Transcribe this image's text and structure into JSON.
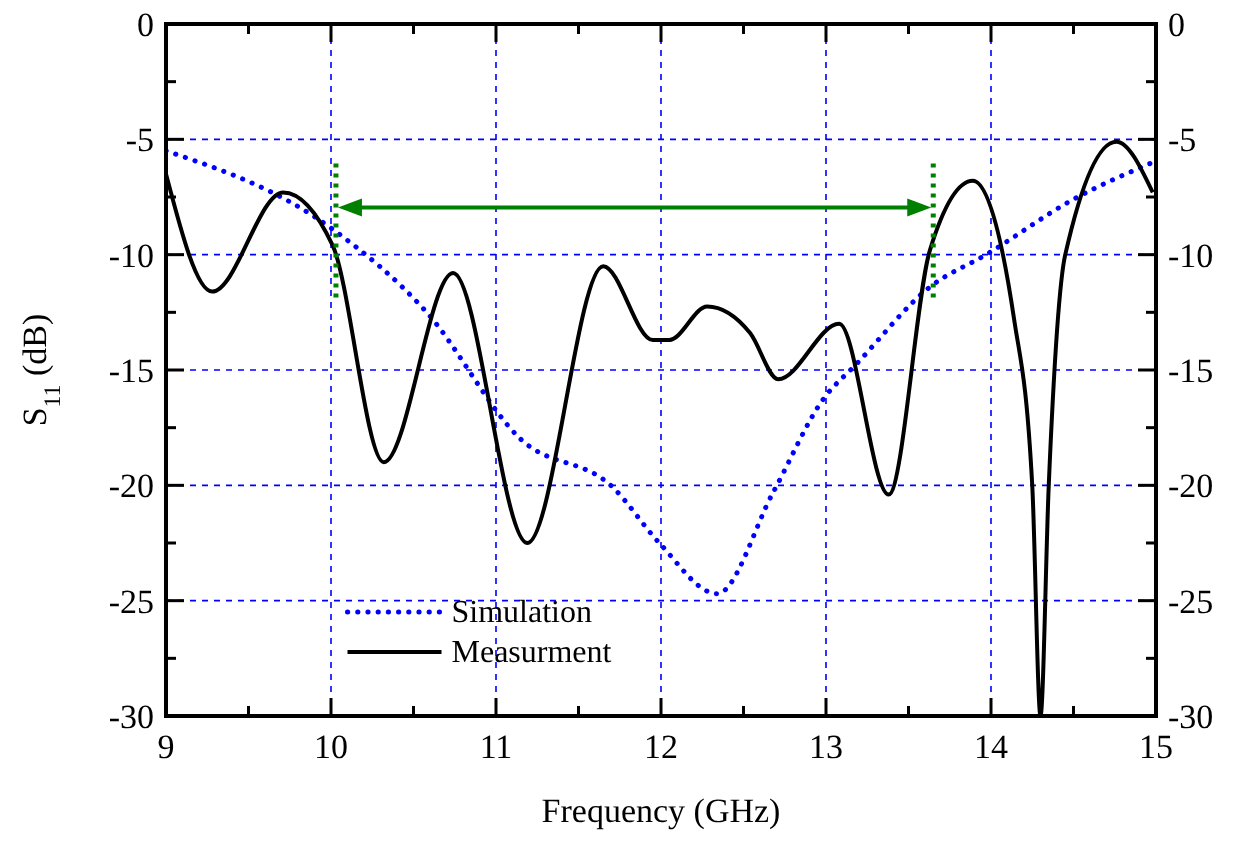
{
  "chart_data": {
    "type": "line",
    "xlabel": "Frequency (GHz)",
    "ylabel": "S$_{11}$ (dB)",
    "xlim": [
      9,
      15
    ],
    "xticks": [
      9,
      {
        "value": 9.5,
        "label": null
      },
      10,
      {
        "value": 10.5,
        "label": null
      },
      11,
      {
        "value": 11.5,
        "label": null
      },
      12,
      {
        "value": 12.5,
        "label": null
      },
      13,
      {
        "value": 13.5,
        "label": null
      },
      14,
      {
        "value": 14.5,
        "label": null
      },
      15
    ],
    "ylim": [
      -30,
      0
    ],
    "yticks": [
      -30,
      {
        "value": -27.5,
        "label": null
      },
      -25,
      {
        "value": -22.5,
        "label": null
      },
      -20,
      {
        "value": -17.5,
        "label": null
      },
      -15,
      {
        "value": -12.5,
        "label": null
      },
      -10,
      {
        "value": -7.5,
        "label": null
      },
      -5,
      {
        "value": -2.5,
        "label": null
      },
      0
    ],
    "y2lim": [
      -30,
      0
    ],
    "y2ticks": [
      -30,
      {
        "value": -27.5,
        "label": null
      },
      -25,
      {
        "value": -22.5,
        "label": null
      },
      -20,
      {
        "value": -17.5,
        "label": null
      },
      -15,
      {
        "value": -12.5,
        "label": null
      },
      -10,
      {
        "value": -7.5,
        "label": null
      },
      -5,
      {
        "value": -2.5,
        "label": null
      },
      0
    ],
    "grid": true,
    "legend": "bottom left",
    "ref_lines": [
      {
        "axis": "x",
        "value": 10.03,
        "color": "#008000",
        "line_style": "dotted"
      },
      {
        "axis": "x",
        "value": 13.65,
        "color": "#008000",
        "line_style": "dotted"
      }
    ],
    "series": [
      {
        "name": "Simulation",
        "color": "#0000ff",
        "line_style": "dotted",
        "x": [
          9,
          10.01,
          10.58,
          11.15,
          11.71,
          11.99,
          12.34,
          12.68,
          12.98,
          13.19,
          13.63,
          13.97,
          14.5,
          14.98
        ],
        "values": [
          -5.5,
          -8.9,
          -12.5,
          -18,
          -20.1,
          -22.5,
          -24.7,
          -20.3,
          -16.3,
          -14.7,
          -11.4,
          -10,
          -7.6,
          -6
        ]
      },
      {
        "name": "Measurment",
        "color": "#000000",
        "line_style": "solid",
        "x": [
          9,
          9.28,
          9.71,
          10.01,
          10.32,
          10.74,
          11.19,
          11.65,
          11.95,
          12.05,
          12.28,
          12.54,
          12.71,
          13.08,
          13.38,
          13.63,
          13.89,
          14.14,
          14.25,
          14.3,
          14.35,
          14.45,
          14.76,
          14.98
        ],
        "values": [
          -6.5,
          -11.6,
          -7.3,
          -9.6,
          -19,
          -10.8,
          -22.5,
          -10.5,
          -13.7,
          -13.7,
          -12.25,
          -13.4,
          -15.4,
          -13,
          -20.4,
          -9.8,
          -6.8,
          -12.8,
          -20,
          -30,
          -20,
          -10,
          -5.1,
          -7.3
        ]
      }
    ]
  }
}
